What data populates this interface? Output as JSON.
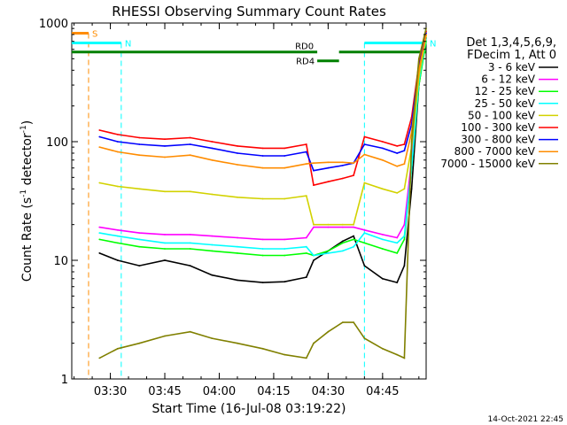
{
  "chart_data": {
    "type": "line",
    "title": "RHESSI Observing Summary Count Rates",
    "xlabel": "Start Time (16-Jul-08 03:19:22)",
    "ylabel_main": "Count Rate (s",
    "ylabel_sup1": "-1",
    "ylabel_mid": " detector",
    "ylabel_sup2": "-1",
    "ylabel_end": ")",
    "yscale": "log",
    "ylim": [
      1,
      1000
    ],
    "xlim": [
      "03:19:22",
      "04:57:00"
    ],
    "x_ticks": [
      "03:30",
      "03:45",
      "04:00",
      "04:15",
      "04:30",
      "04:45"
    ],
    "y_ticks": [
      {
        "value": 1,
        "label": "1"
      },
      {
        "value": 10,
        "label": "10"
      },
      {
        "value": 100,
        "label": "100"
      },
      {
        "value": 1000,
        "label": "1000"
      }
    ],
    "legend": {
      "header": [
        "Det 1,3,4,5,6,9,",
        "FDecim 1, Att 0"
      ],
      "placement": "right"
    },
    "series": [
      {
        "name": "3 - 6 keV",
        "color": "#000000",
        "x": [
          "03:27",
          "03:32",
          "03:38",
          "03:45",
          "03:52",
          "03:58",
          "04:05",
          "04:12",
          "04:18",
          "04:24",
          "04:26",
          "04:30",
          "04:34",
          "04:37",
          "04:40",
          "04:45",
          "04:49",
          "04:51",
          "04:53",
          "04:55",
          "04:57"
        ],
        "y": [
          11.5,
          10,
          9,
          10,
          9,
          7.5,
          6.8,
          6.5,
          6.6,
          7.2,
          10,
          12,
          14.5,
          16,
          9,
          7,
          6.5,
          9,
          40,
          300,
          750
        ]
      },
      {
        "name": "6 - 12 keV",
        "color": "#ff00ff",
        "x": [
          "03:27",
          "03:32",
          "03:38",
          "03:45",
          "03:52",
          "03:58",
          "04:05",
          "04:12",
          "04:18",
          "04:24",
          "04:26",
          "04:30",
          "04:34",
          "04:37",
          "04:40",
          "04:45",
          "04:49",
          "04:51",
          "04:53",
          "04:55",
          "04:57"
        ],
        "y": [
          19,
          18,
          17,
          16.5,
          16.5,
          16,
          15.5,
          15,
          15,
          15.5,
          19,
          19,
          19,
          19,
          18,
          16.5,
          15.5,
          20,
          70,
          350,
          800
        ]
      },
      {
        "name": "12 - 25 keV",
        "color": "#00ff00",
        "x": [
          "03:27",
          "03:32",
          "03:38",
          "03:45",
          "03:52",
          "03:58",
          "04:05",
          "04:12",
          "04:18",
          "04:24",
          "04:26",
          "04:30",
          "04:34",
          "04:37",
          "04:40",
          "04:45",
          "04:49",
          "04:51",
          "04:53",
          "04:55",
          "04:57"
        ],
        "y": [
          15,
          14,
          13,
          12.5,
          12.5,
          12,
          11.5,
          11,
          11,
          11.5,
          11,
          12,
          14,
          15,
          14,
          12.5,
          11.5,
          15,
          60,
          300,
          700
        ]
      },
      {
        "name": "25 - 50 keV",
        "color": "#00ffff",
        "x": [
          "03:27",
          "03:32",
          "03:38",
          "03:45",
          "03:52",
          "03:58",
          "04:05",
          "04:12",
          "04:18",
          "04:24",
          "04:26",
          "04:30",
          "04:34",
          "04:37",
          "04:40",
          "04:45",
          "04:49",
          "04:51",
          "04:53",
          "04:55",
          "04:57"
        ],
        "y": [
          17,
          16,
          15,
          14,
          14,
          13.5,
          13,
          12.5,
          12.5,
          13,
          11,
          11.5,
          12,
          13,
          17,
          15,
          14,
          16,
          60,
          320,
          750
        ]
      },
      {
        "name": "50 - 100 keV",
        "color": "#d2d200",
        "x": [
          "03:27",
          "03:32",
          "03:38",
          "03:45",
          "03:52",
          "03:58",
          "04:05",
          "04:12",
          "04:18",
          "04:24",
          "04:26",
          "04:30",
          "04:34",
          "04:37",
          "04:40",
          "04:45",
          "04:49",
          "04:51",
          "04:53",
          "04:55",
          "04:57"
        ],
        "y": [
          45,
          42,
          40,
          38,
          38,
          36,
          34,
          33,
          33,
          35,
          20,
          20,
          20,
          20,
          45,
          40,
          37,
          40,
          90,
          350,
          780
        ]
      },
      {
        "name": "100 - 300 keV",
        "color": "#ff0000",
        "x": [
          "03:27",
          "03:32",
          "03:38",
          "03:45",
          "03:52",
          "03:58",
          "04:05",
          "04:12",
          "04:18",
          "04:24",
          "04:26",
          "04:30",
          "04:34",
          "04:37",
          "04:40",
          "04:45",
          "04:49",
          "04:51",
          "04:53",
          "04:55",
          "04:57"
        ],
        "y": [
          125,
          115,
          108,
          105,
          108,
          100,
          92,
          88,
          88,
          95,
          43,
          46,
          49,
          52,
          110,
          100,
          92,
          95,
          160,
          450,
          850
        ]
      },
      {
        "name": "300 - 800 keV",
        "color": "#0000ff",
        "x": [
          "03:27",
          "03:32",
          "03:38",
          "03:45",
          "03:52",
          "03:58",
          "04:05",
          "04:12",
          "04:18",
          "04:24",
          "04:26",
          "04:30",
          "04:34",
          "04:37",
          "04:40",
          "04:45",
          "04:49",
          "04:51",
          "04:53",
          "04:55",
          "04:57"
        ],
        "y": [
          110,
          100,
          95,
          92,
          95,
          88,
          80,
          76,
          76,
          82,
          57,
          60,
          63,
          66,
          95,
          88,
          80,
          84,
          140,
          420,
          820
        ]
      },
      {
        "name": "800 - 7000 keV",
        "color": "#ff8c00",
        "x": [
          "03:27",
          "03:32",
          "03:38",
          "03:45",
          "03:52",
          "03:58",
          "04:05",
          "04:12",
          "04:18",
          "04:24",
          "04:26",
          "04:30",
          "04:34",
          "04:37",
          "04:40",
          "04:45",
          "04:49",
          "04:51",
          "04:53",
          "04:55",
          "04:57"
        ],
        "y": [
          90,
          82,
          77,
          74,
          77,
          70,
          64,
          60,
          60,
          65,
          66,
          67,
          67,
          66,
          78,
          70,
          62,
          65,
          120,
          400,
          800
        ]
      },
      {
        "name": "7000 - 15000 keV",
        "color": "#808000",
        "x": [
          "03:27",
          "03:32",
          "03:38",
          "03:45",
          "03:52",
          "03:58",
          "04:05",
          "04:12",
          "04:18",
          "04:24",
          "04:26",
          "04:30",
          "04:34",
          "04:37",
          "04:40",
          "04:45",
          "04:49",
          "04:51",
          "04:53",
          "04:55",
          "04:57"
        ],
        "y": [
          1.5,
          1.8,
          2,
          2.3,
          2.5,
          2.2,
          2,
          1.8,
          1.6,
          1.5,
          2,
          2.5,
          3,
          3,
          2.2,
          1.8,
          1.6,
          1.5,
          100,
          500,
          900
        ]
      }
    ],
    "annotations": [
      {
        "label": "S",
        "color": "#ff8c00",
        "x_start": "03:19:22",
        "x_end": "03:24:00",
        "y": 820,
        "vline_x": "03:24:00",
        "vline_color": "#ff8c00"
      },
      {
        "label": "N",
        "color": "#00ffff",
        "x_start": "03:19:22",
        "x_end": "03:33:00",
        "y": 680,
        "vline_x": "03:33:00",
        "vline_color": "#00ffff"
      },
      {
        "label": "N",
        "color": "#00ffff",
        "x_start": "04:40:00",
        "x_end": "04:57:00",
        "y": 680,
        "vline_x": "04:40:00",
        "vline_color": "#00ffff"
      },
      {
        "label": "RD0",
        "color": "#008000",
        "x_start": "03:19:22",
        "x_end": "04:27:00",
        "y": 570
      },
      {
        "label": "RD4",
        "color": "#008000",
        "x_start": "04:27:00",
        "x_end": "04:33:00",
        "y": 480
      },
      {
        "label": "",
        "color": "#008000",
        "x_start": "04:33:00",
        "x_end": "04:57:00",
        "y": 570
      }
    ],
    "footer_timestamp": "14-Oct-2021 22:45"
  }
}
